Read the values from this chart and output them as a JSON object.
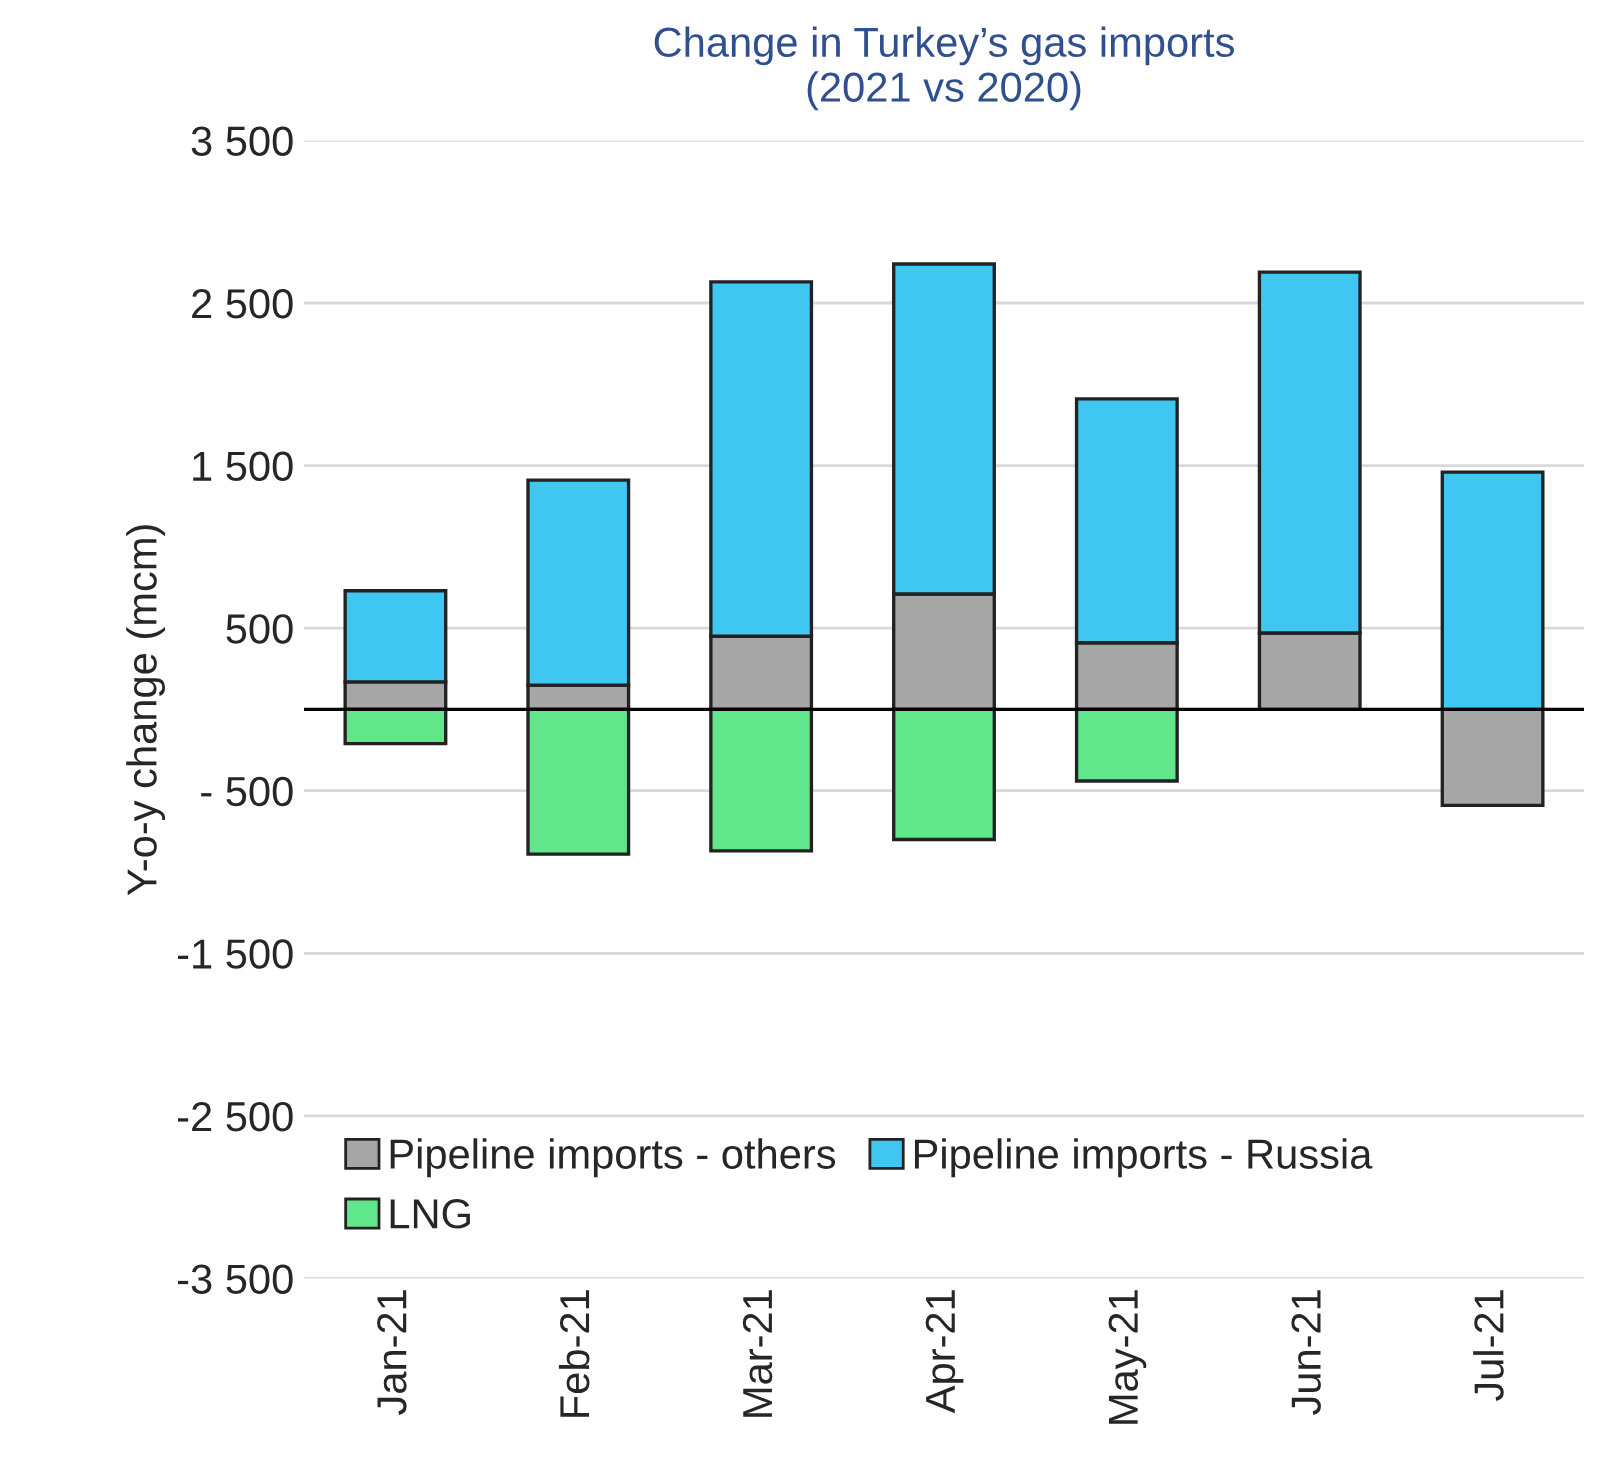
{
  "chart_data": {
    "type": "bar",
    "title": "Change in Turkey’s gas imports\n(2021 vs 2020)",
    "ylabel": "Y-o-y change (mcm)",
    "categories": [
      "Jan-21",
      "Feb-21",
      "Mar-21",
      "Apr-21",
      "May-21",
      "Jun-21",
      "Jul-21"
    ],
    "stacked": true,
    "series": [
      {
        "name": "Pipeline imports - others",
        "color": "#a6a6a6",
        "values": [
          170,
          150,
          450,
          710,
          410,
          470,
          -590
        ]
      },
      {
        "name": "Pipeline imports - Russia",
        "color": "#3fc7f2",
        "values": [
          560,
          1260,
          2180,
          2030,
          1500,
          2220,
          1460
        ]
      },
      {
        "name": "LNG",
        "color": "#62e68c",
        "values": [
          -210,
          -890,
          -870,
          -800,
          -440,
          null,
          null
        ]
      }
    ],
    "ylim": [
      -3500,
      3500
    ],
    "yticks": [
      {
        "value": -3500,
        "label": "-3 500"
      },
      {
        "value": -2500,
        "label": "-2 500"
      },
      {
        "value": -1500,
        "label": "-1 500"
      },
      {
        "value": -500,
        "label": "- 500"
      },
      500,
      {
        "value": 1500,
        "label": "1 500"
      },
      {
        "value": 2500,
        "label": "2 500"
      },
      {
        "value": 3500,
        "label": "3 500"
      }
    ],
    "ref_lines": [
      {
        "axis": "y",
        "value": 0,
        "color": "#000000"
      }
    ],
    "grid": "y",
    "legend": "bottom left"
  }
}
